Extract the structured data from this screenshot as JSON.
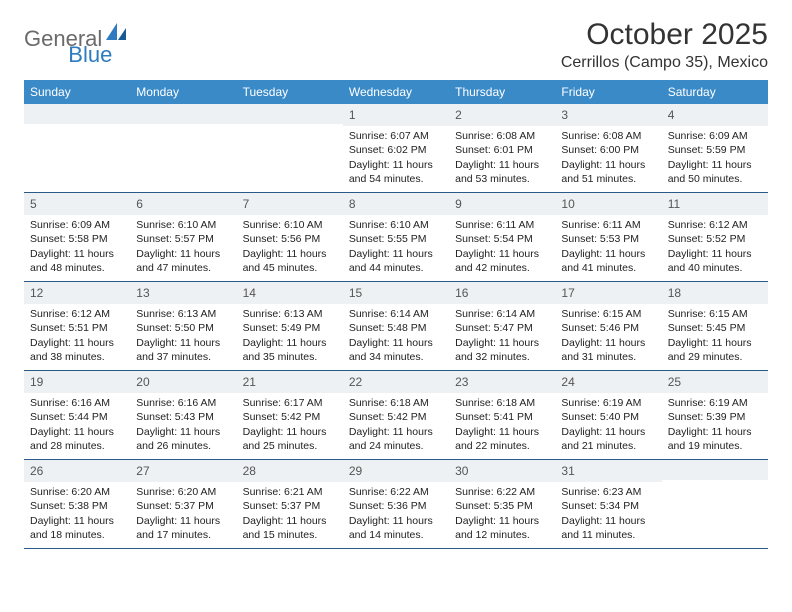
{
  "brand": {
    "part1": "General",
    "part2": "Blue"
  },
  "title": "October 2025",
  "location": "Cerrillos (Campo 35), Mexico",
  "header_bg": "#3a8ac8",
  "row_border": "#2a5a8a",
  "daynum_bg": "#eef1f3",
  "weekdays": [
    "Sunday",
    "Monday",
    "Tuesday",
    "Wednesday",
    "Thursday",
    "Friday",
    "Saturday"
  ],
  "weeks": [
    [
      {
        "n": "",
        "lines": []
      },
      {
        "n": "",
        "lines": []
      },
      {
        "n": "",
        "lines": []
      },
      {
        "n": "1",
        "lines": [
          "Sunrise: 6:07 AM",
          "Sunset: 6:02 PM",
          "Daylight: 11 hours",
          "and 54 minutes."
        ]
      },
      {
        "n": "2",
        "lines": [
          "Sunrise: 6:08 AM",
          "Sunset: 6:01 PM",
          "Daylight: 11 hours",
          "and 53 minutes."
        ]
      },
      {
        "n": "3",
        "lines": [
          "Sunrise: 6:08 AM",
          "Sunset: 6:00 PM",
          "Daylight: 11 hours",
          "and 51 minutes."
        ]
      },
      {
        "n": "4",
        "lines": [
          "Sunrise: 6:09 AM",
          "Sunset: 5:59 PM",
          "Daylight: 11 hours",
          "and 50 minutes."
        ]
      }
    ],
    [
      {
        "n": "5",
        "lines": [
          "Sunrise: 6:09 AM",
          "Sunset: 5:58 PM",
          "Daylight: 11 hours",
          "and 48 minutes."
        ]
      },
      {
        "n": "6",
        "lines": [
          "Sunrise: 6:10 AM",
          "Sunset: 5:57 PM",
          "Daylight: 11 hours",
          "and 47 minutes."
        ]
      },
      {
        "n": "7",
        "lines": [
          "Sunrise: 6:10 AM",
          "Sunset: 5:56 PM",
          "Daylight: 11 hours",
          "and 45 minutes."
        ]
      },
      {
        "n": "8",
        "lines": [
          "Sunrise: 6:10 AM",
          "Sunset: 5:55 PM",
          "Daylight: 11 hours",
          "and 44 minutes."
        ]
      },
      {
        "n": "9",
        "lines": [
          "Sunrise: 6:11 AM",
          "Sunset: 5:54 PM",
          "Daylight: 11 hours",
          "and 42 minutes."
        ]
      },
      {
        "n": "10",
        "lines": [
          "Sunrise: 6:11 AM",
          "Sunset: 5:53 PM",
          "Daylight: 11 hours",
          "and 41 minutes."
        ]
      },
      {
        "n": "11",
        "lines": [
          "Sunrise: 6:12 AM",
          "Sunset: 5:52 PM",
          "Daylight: 11 hours",
          "and 40 minutes."
        ]
      }
    ],
    [
      {
        "n": "12",
        "lines": [
          "Sunrise: 6:12 AM",
          "Sunset: 5:51 PM",
          "Daylight: 11 hours",
          "and 38 minutes."
        ]
      },
      {
        "n": "13",
        "lines": [
          "Sunrise: 6:13 AM",
          "Sunset: 5:50 PM",
          "Daylight: 11 hours",
          "and 37 minutes."
        ]
      },
      {
        "n": "14",
        "lines": [
          "Sunrise: 6:13 AM",
          "Sunset: 5:49 PM",
          "Daylight: 11 hours",
          "and 35 minutes."
        ]
      },
      {
        "n": "15",
        "lines": [
          "Sunrise: 6:14 AM",
          "Sunset: 5:48 PM",
          "Daylight: 11 hours",
          "and 34 minutes."
        ]
      },
      {
        "n": "16",
        "lines": [
          "Sunrise: 6:14 AM",
          "Sunset: 5:47 PM",
          "Daylight: 11 hours",
          "and 32 minutes."
        ]
      },
      {
        "n": "17",
        "lines": [
          "Sunrise: 6:15 AM",
          "Sunset: 5:46 PM",
          "Daylight: 11 hours",
          "and 31 minutes."
        ]
      },
      {
        "n": "18",
        "lines": [
          "Sunrise: 6:15 AM",
          "Sunset: 5:45 PM",
          "Daylight: 11 hours",
          "and 29 minutes."
        ]
      }
    ],
    [
      {
        "n": "19",
        "lines": [
          "Sunrise: 6:16 AM",
          "Sunset: 5:44 PM",
          "Daylight: 11 hours",
          "and 28 minutes."
        ]
      },
      {
        "n": "20",
        "lines": [
          "Sunrise: 6:16 AM",
          "Sunset: 5:43 PM",
          "Daylight: 11 hours",
          "and 26 minutes."
        ]
      },
      {
        "n": "21",
        "lines": [
          "Sunrise: 6:17 AM",
          "Sunset: 5:42 PM",
          "Daylight: 11 hours",
          "and 25 minutes."
        ]
      },
      {
        "n": "22",
        "lines": [
          "Sunrise: 6:18 AM",
          "Sunset: 5:42 PM",
          "Daylight: 11 hours",
          "and 24 minutes."
        ]
      },
      {
        "n": "23",
        "lines": [
          "Sunrise: 6:18 AM",
          "Sunset: 5:41 PM",
          "Daylight: 11 hours",
          "and 22 minutes."
        ]
      },
      {
        "n": "24",
        "lines": [
          "Sunrise: 6:19 AM",
          "Sunset: 5:40 PM",
          "Daylight: 11 hours",
          "and 21 minutes."
        ]
      },
      {
        "n": "25",
        "lines": [
          "Sunrise: 6:19 AM",
          "Sunset: 5:39 PM",
          "Daylight: 11 hours",
          "and 19 minutes."
        ]
      }
    ],
    [
      {
        "n": "26",
        "lines": [
          "Sunrise: 6:20 AM",
          "Sunset: 5:38 PM",
          "Daylight: 11 hours",
          "and 18 minutes."
        ]
      },
      {
        "n": "27",
        "lines": [
          "Sunrise: 6:20 AM",
          "Sunset: 5:37 PM",
          "Daylight: 11 hours",
          "and 17 minutes."
        ]
      },
      {
        "n": "28",
        "lines": [
          "Sunrise: 6:21 AM",
          "Sunset: 5:37 PM",
          "Daylight: 11 hours",
          "and 15 minutes."
        ]
      },
      {
        "n": "29",
        "lines": [
          "Sunrise: 6:22 AM",
          "Sunset: 5:36 PM",
          "Daylight: 11 hours",
          "and 14 minutes."
        ]
      },
      {
        "n": "30",
        "lines": [
          "Sunrise: 6:22 AM",
          "Sunset: 5:35 PM",
          "Daylight: 11 hours",
          "and 12 minutes."
        ]
      },
      {
        "n": "31",
        "lines": [
          "Sunrise: 6:23 AM",
          "Sunset: 5:34 PM",
          "Daylight: 11 hours",
          "and 11 minutes."
        ]
      },
      {
        "n": "",
        "lines": []
      }
    ]
  ]
}
